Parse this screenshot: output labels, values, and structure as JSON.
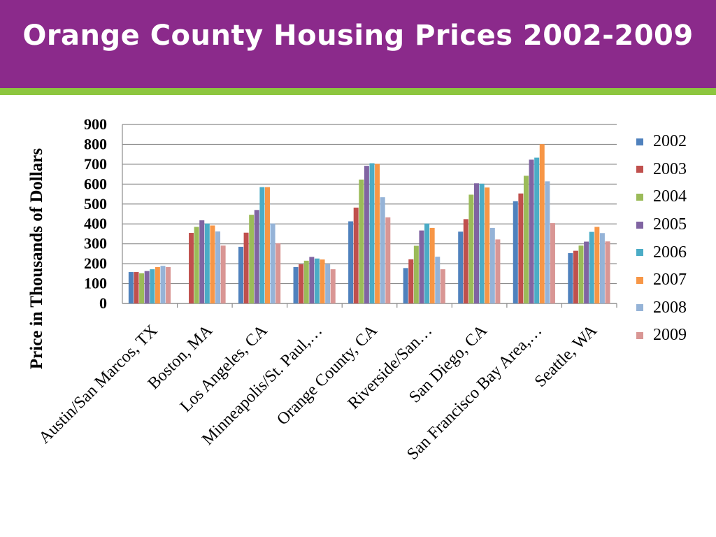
{
  "slide": {
    "title": "Orange County Housing Prices 2002-2009",
    "colors": {
      "header": "#8b2a8b",
      "accent_line": "#8dc63f"
    }
  },
  "chart_data": {
    "type": "bar",
    "title": "",
    "xlabel": "",
    "ylabel": "Price in Thousands of Dollars",
    "ylim": [
      0,
      900
    ],
    "yticks": [
      0,
      100,
      200,
      300,
      400,
      500,
      600,
      700,
      800,
      900
    ],
    "grid": true,
    "legend_position": "right",
    "categories": [
      "Austin/San Marcos, TX",
      "Boston, MA",
      "Los Angeles, CA",
      "Minneapolis/St. Paul,…",
      "Orange County, CA",
      "Riverside/San…",
      "San Diego, CA",
      "San Francisco Bay Area,…",
      "Seattle, WA"
    ],
    "series": [
      {
        "name": "2002",
        "color": "#4f81bd",
        "values": [
          158,
          0,
          285,
          183,
          413,
          178,
          361,
          514,
          253
        ]
      },
      {
        "name": "2003",
        "color": "#c0504d",
        "values": [
          158,
          355,
          356,
          197,
          482,
          222,
          424,
          553,
          265
        ]
      },
      {
        "name": "2004",
        "color": "#9bbb59",
        "values": [
          152,
          385,
          446,
          215,
          623,
          290,
          547,
          642,
          291
        ]
      },
      {
        "name": "2005",
        "color": "#8064a2",
        "values": [
          163,
          418,
          470,
          234,
          692,
          367,
          604,
          723,
          311
        ]
      },
      {
        "name": "2006",
        "color": "#4bacc6",
        "values": [
          172,
          402,
          585,
          226,
          705,
          402,
          602,
          733,
          360
        ]
      },
      {
        "name": "2007",
        "color": "#f79646",
        "values": [
          183,
          392,
          585,
          221,
          702,
          380,
          583,
          801,
          385
        ]
      },
      {
        "name": "2008",
        "color": "#95b3d7",
        "values": [
          189,
          362,
          402,
          197,
          534,
          235,
          380,
          614,
          354
        ]
      },
      {
        "name": "2009",
        "color": "#d99694",
        "values": [
          183,
          291,
          303,
          172,
          433,
          172,
          322,
          404,
          312
        ]
      }
    ]
  }
}
